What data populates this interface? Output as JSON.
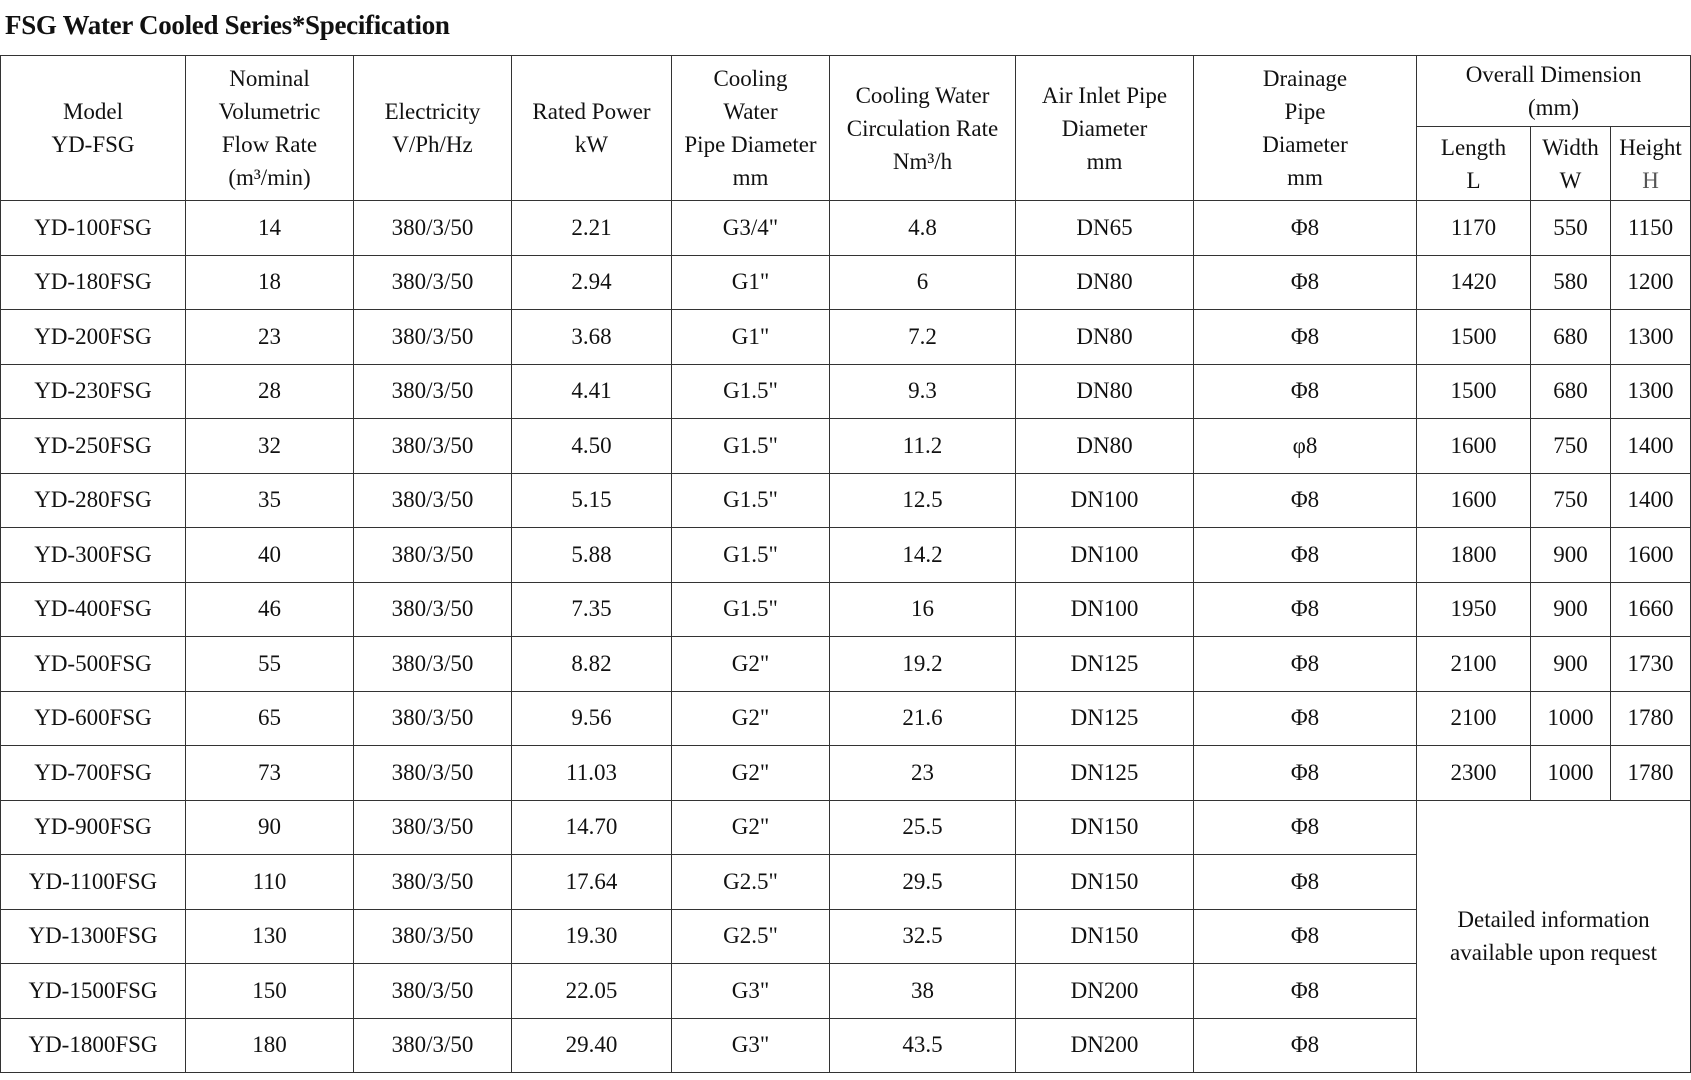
{
  "title": "FSG Water Cooled Series*Specification",
  "headers": {
    "model": [
      "Model",
      "YD-FSG"
    ],
    "flow": [
      "Nominal",
      "Volumetric",
      "Flow Rate",
      "(m³/min)"
    ],
    "electricity": [
      "Electricity",
      "V/Ph/Hz"
    ],
    "power": [
      "Rated Power",
      "kW"
    ],
    "cooling_pipe": [
      "Cooling",
      "Water",
      "Pipe Diameter",
      "mm"
    ],
    "circulation": [
      "Cooling Water",
      "Circulation Rate",
      "Nm³/h"
    ],
    "air_inlet": [
      "Air Inlet Pipe",
      "Diameter",
      "mm"
    ],
    "drainage": [
      "Drainage",
      "Pipe",
      "Diameter",
      "mm"
    ],
    "overall": [
      "Overall Dimension",
      "(mm)"
    ],
    "length": [
      "Length",
      "L"
    ],
    "width": [
      "Width",
      "W"
    ],
    "height": [
      "Height",
      "H"
    ]
  },
  "rows": [
    [
      "YD-100FSG",
      "14",
      "380/3/50",
      "2.21",
      "G3/4\"",
      "4.8",
      "DN65",
      "Φ8",
      "1170",
      "550",
      "1150"
    ],
    [
      "YD-180FSG",
      "18",
      "380/3/50",
      "2.94",
      "G1\"",
      "6",
      "DN80",
      "Φ8",
      "1420",
      "580",
      "1200"
    ],
    [
      "YD-200FSG",
      "23",
      "380/3/50",
      "3.68",
      "G1\"",
      "7.2",
      "DN80",
      "Φ8",
      "1500",
      "680",
      "1300"
    ],
    [
      "YD-230FSG",
      "28",
      "380/3/50",
      "4.41",
      "G1.5\"",
      "9.3",
      "DN80",
      "Φ8",
      "1500",
      "680",
      "1300"
    ],
    [
      "YD-250FSG",
      "32",
      "380/3/50",
      "4.50",
      "G1.5\"",
      "11.2",
      "DN80",
      "φ8",
      "1600",
      "750",
      "1400"
    ],
    [
      "YD-280FSG",
      "35",
      "380/3/50",
      "5.15",
      "G1.5\"",
      "12.5",
      "DN100",
      "Φ8",
      "1600",
      "750",
      "1400"
    ],
    [
      "YD-300FSG",
      "40",
      "380/3/50",
      "5.88",
      "G1.5\"",
      "14.2",
      "DN100",
      "Φ8",
      "1800",
      "900",
      "1600"
    ],
    [
      "YD-400FSG",
      "46",
      "380/3/50",
      "7.35",
      "G1.5\"",
      "16",
      "DN100",
      "Φ8",
      "1950",
      "900",
      "1660"
    ],
    [
      "YD-500FSG",
      "55",
      "380/3/50",
      "8.82",
      "G2\"",
      "19.2",
      "DN125",
      "Φ8",
      "2100",
      "900",
      "1730"
    ],
    [
      "YD-600FSG",
      "65",
      "380/3/50",
      "9.56",
      "G2\"",
      "21.6",
      "DN125",
      "Φ8",
      "2100",
      "1000",
      "1780"
    ],
    [
      "YD-700FSG",
      "73",
      "380/3/50",
      "11.03",
      "G2\"",
      "23",
      "DN125",
      "Φ8",
      "2300",
      "1000",
      "1780"
    ],
    [
      "YD-900FSG",
      "90",
      "380/3/50",
      "14.70",
      "G2\"",
      "25.5",
      "DN150",
      "Φ8"
    ],
    [
      "YD-1100FSG",
      "110",
      "380/3/50",
      "17.64",
      "G2.5\"",
      "29.5",
      "DN150",
      "Φ8"
    ],
    [
      "YD-1300FSG",
      "130",
      "380/3/50",
      "19.30",
      "G2.5\"",
      "32.5",
      "DN150",
      "Φ8"
    ],
    [
      "YD-1500FSG",
      "150",
      "380/3/50",
      "22.05",
      "G3\"",
      "38",
      "DN200",
      "Φ8"
    ],
    [
      "YD-1800FSG",
      "180",
      "380/3/50",
      "29.40",
      "G3\"",
      "43.5",
      "DN200",
      "Φ8"
    ]
  ],
  "merged_note": [
    "Detailed information",
    "available upon request"
  ]
}
